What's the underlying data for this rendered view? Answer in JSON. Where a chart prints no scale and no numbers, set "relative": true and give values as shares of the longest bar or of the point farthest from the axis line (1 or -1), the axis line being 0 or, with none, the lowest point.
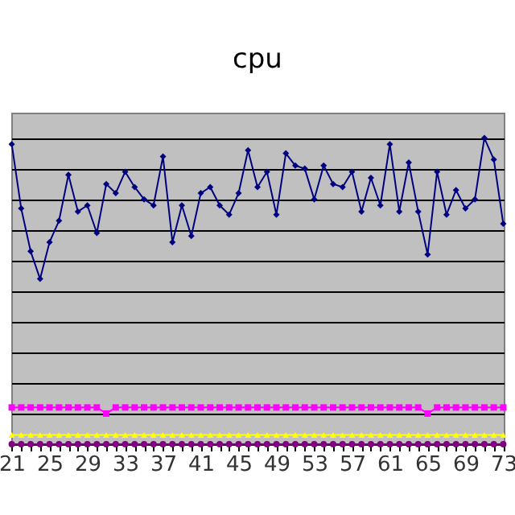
{
  "chart_data": {
    "type": "line",
    "title": "cpu",
    "relative": true,
    "grid": "y",
    "categories": [
      "21",
      null,
      null,
      null,
      "25",
      null,
      null,
      null,
      "29",
      null,
      null,
      null,
      "33",
      null,
      null,
      null,
      "37",
      null,
      null,
      null,
      "41",
      null,
      null,
      null,
      "45",
      null,
      null,
      null,
      "49",
      null,
      null,
      null,
      "53",
      null,
      null,
      null,
      "57",
      null,
      null,
      null,
      "61",
      null,
      null,
      null,
      "65",
      null,
      null,
      null,
      "69",
      null,
      null,
      null,
      "73"
    ],
    "series": [
      {
        "color": "#000080",
        "marker": "diamond",
        "values": [
          0.98,
          0.77,
          0.63,
          0.54,
          0.66,
          0.73,
          0.88,
          0.76,
          0.78,
          0.69,
          0.85,
          0.82,
          0.89,
          0.84,
          0.8,
          0.78,
          0.94,
          0.66,
          0.78,
          0.68,
          0.82,
          0.84,
          0.78,
          0.75,
          0.82,
          0.96,
          0.84,
          0.89,
          0.75,
          0.95,
          0.91,
          0.9,
          0.8,
          0.91,
          0.85,
          0.84,
          0.89,
          0.76,
          0.87,
          0.78,
          0.98,
          0.76,
          0.92,
          0.76,
          0.62,
          0.89,
          0.75,
          0.83,
          0.77,
          0.8,
          1,
          0.93,
          0.72
        ]
      },
      {
        "color": "#ff00ff",
        "marker": "square",
        "values": [
          0.12,
          0.12,
          0.12,
          0.12,
          0.12,
          0.12,
          0.12,
          0.12,
          0.12,
          0.12,
          0.1,
          0.12,
          0.12,
          0.12,
          0.12,
          0.12,
          0.12,
          0.12,
          0.12,
          0.12,
          0.12,
          0.12,
          0.12,
          0.12,
          0.12,
          0.12,
          0.12,
          0.12,
          0.12,
          0.12,
          0.12,
          0.12,
          0.12,
          0.12,
          0.12,
          0.12,
          0.12,
          0.12,
          0.12,
          0.12,
          0.12,
          0.12,
          0.12,
          0.12,
          0.1,
          0.12,
          0.12,
          0.12,
          0.12,
          0.12,
          0.12,
          0.12,
          0.12
        ]
      },
      {
        "color": "#ffff00",
        "marker": "triangle",
        "values": [
          0.03,
          0.03,
          0.03,
          0.03,
          0.03,
          0.03,
          0.03,
          0.03,
          0.03,
          0.03,
          0.03,
          0.03,
          0.03,
          0.03,
          0.03,
          0.03,
          0.03,
          0.03,
          0.03,
          0.03,
          0.03,
          0.03,
          0.03,
          0.03,
          0.03,
          0.03,
          0.03,
          0.03,
          0.03,
          0.03,
          0.03,
          0.03,
          0.03,
          0.03,
          0.03,
          0.03,
          0.03,
          0.03,
          0.03,
          0.03,
          0.03,
          0.03,
          0.03,
          0.03,
          0.03,
          0.03,
          0.03,
          0.03,
          0.03,
          0.03,
          0.03,
          0.03,
          0.03
        ]
      },
      {
        "color": "#800080",
        "marker": "circle",
        "values": [
          0,
          0,
          0,
          0,
          0,
          0,
          0,
          0,
          0,
          0,
          0,
          0,
          0,
          0,
          0,
          0,
          0,
          0,
          0,
          0,
          0,
          0,
          0,
          0,
          0,
          0,
          0,
          0,
          0,
          0,
          0,
          0,
          0,
          0,
          0,
          0,
          0,
          0,
          0,
          0,
          0,
          0,
          0,
          0,
          0,
          0,
          0,
          0,
          0,
          0,
          0,
          0,
          0
        ]
      }
    ]
  }
}
